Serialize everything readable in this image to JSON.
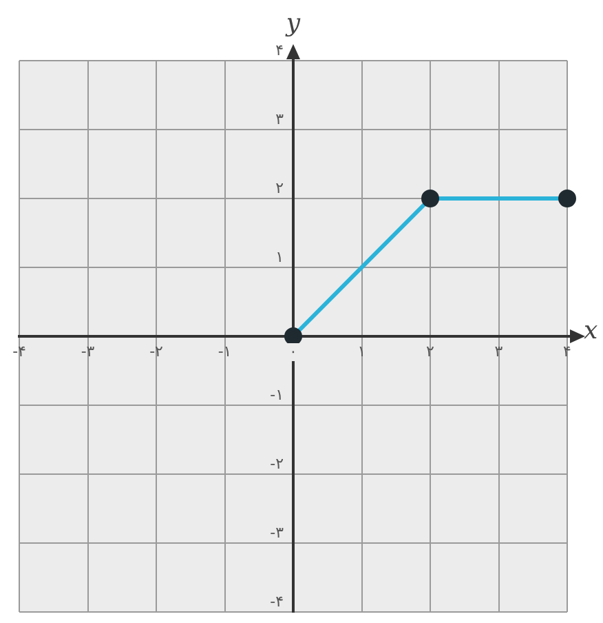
{
  "chart_data": {
    "type": "line",
    "xlabel": "x",
    "ylabel": "y",
    "x": [
      0,
      2,
      4
    ],
    "series": [
      {
        "color": "#2bb3d9",
        "values": [
          0,
          2,
          2
        ]
      }
    ],
    "marker": "circle",
    "grid": true,
    "xlim": [
      -4,
      4
    ],
    "ylim": [
      -4,
      4
    ],
    "xticks": [
      {
        "value": -4,
        "label": "-۴"
      },
      {
        "value": -3,
        "label": "-۳"
      },
      {
        "value": -2,
        "label": "-۲"
      },
      {
        "value": -1,
        "label": "-۱"
      },
      {
        "value": 0,
        "label": "۰"
      },
      {
        "value": 1,
        "label": "۱"
      },
      {
        "value": 2,
        "label": "۲"
      },
      {
        "value": 3,
        "label": "۳"
      },
      {
        "value": 4,
        "label": "۴"
      }
    ],
    "yticks": [
      {
        "value": -4,
        "label": "-۴"
      },
      {
        "value": -3,
        "label": "-۳"
      },
      {
        "value": -2,
        "label": "-۲"
      },
      {
        "value": -1,
        "label": "-۱"
      },
      {
        "value": 0,
        "label": null
      },
      {
        "value": 1,
        "label": "۱"
      },
      {
        "value": 2,
        "label": "۲"
      },
      {
        "value": 3,
        "label": "۳"
      },
      {
        "value": 4,
        "label": "۴"
      }
    ]
  }
}
